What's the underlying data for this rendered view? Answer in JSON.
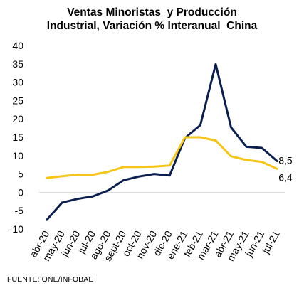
{
  "chart_data": {
    "type": "line",
    "title_lines": [
      "Ventas Minoristas  y Producción",
      "Industrial, Variación % Interanual  China"
    ],
    "xlabel": "",
    "ylabel": "",
    "categories": [
      "abr-20",
      "may-20",
      "jun-20",
      "jul-20",
      "ago-20",
      "sept-20",
      "oct-20",
      "nov-20",
      "dic-20",
      "ene-21",
      "feb-21",
      "mar-21",
      "abr-21",
      "may-21",
      "jun-21",
      "jul-21"
    ],
    "x_tick_labels": [
      "abr-20",
      "may-20",
      "jun-20",
      "jul-20",
      "ago-20",
      "sept-20",
      "oct-20",
      "nov-20",
      "dic-20",
      "ene-21",
      "feb-21",
      "mar-21",
      "abr-21",
      "may-21",
      "jun-21",
      "jul-21"
    ],
    "ylim": [
      -10,
      40
    ],
    "y_tick_labels": [
      "-10",
      "-5",
      "0",
      "5",
      "10",
      "15",
      "20",
      "25",
      "30",
      "35",
      "40"
    ],
    "grid": false,
    "legend": "none",
    "series": [
      {
        "values": [
          -7.5,
          -2.8,
          -1.8,
          -1.1,
          0.5,
          3.3,
          4.3,
          5.0,
          4.6,
          14.8,
          18.3,
          34.9,
          17.7,
          12.4,
          12.1,
          8.5
        ],
        "color": "#0b1f4f",
        "end_label": "8,5"
      },
      {
        "values": [
          3.9,
          4.4,
          4.8,
          4.8,
          5.6,
          6.9,
          6.9,
          7.0,
          7.3,
          15.0,
          15.0,
          14.1,
          9.8,
          8.8,
          8.3,
          6.4
        ],
        "color": "#f5c518",
        "end_label": "6,4"
      }
    ]
  },
  "source_note": "FUENTE: ONE/INFOBAE"
}
